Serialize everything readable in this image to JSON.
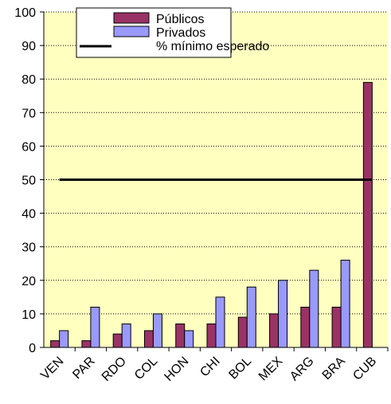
{
  "chart_data": {
    "type": "bar",
    "categories": [
      "VEN",
      "PAR",
      "RDO",
      "COL",
      "HON",
      "CHI",
      "BOL",
      "MEX",
      "ARG",
      "BRA",
      "CUB"
    ],
    "series": [
      {
        "name": "Públicos",
        "color": "#993366",
        "values": [
          2,
          2,
          4,
          5,
          7,
          7,
          9,
          10,
          12,
          12,
          79
        ]
      },
      {
        "name": "Privados",
        "color": "#9999ff",
        "values": [
          5,
          12,
          7,
          10,
          5,
          15,
          18,
          20,
          23,
          26,
          null
        ]
      },
      {
        "name": "% mínimo esperado",
        "color": "#000000",
        "type": "line",
        "values": [
          50,
          50,
          50,
          50,
          50,
          50,
          50,
          50,
          50,
          50,
          50
        ]
      }
    ],
    "ylim": [
      0,
      100
    ],
    "yticks": [
      0,
      10,
      20,
      30,
      40,
      50,
      60,
      70,
      80,
      90,
      100
    ],
    "grid": true,
    "background": "#ffffc0"
  }
}
